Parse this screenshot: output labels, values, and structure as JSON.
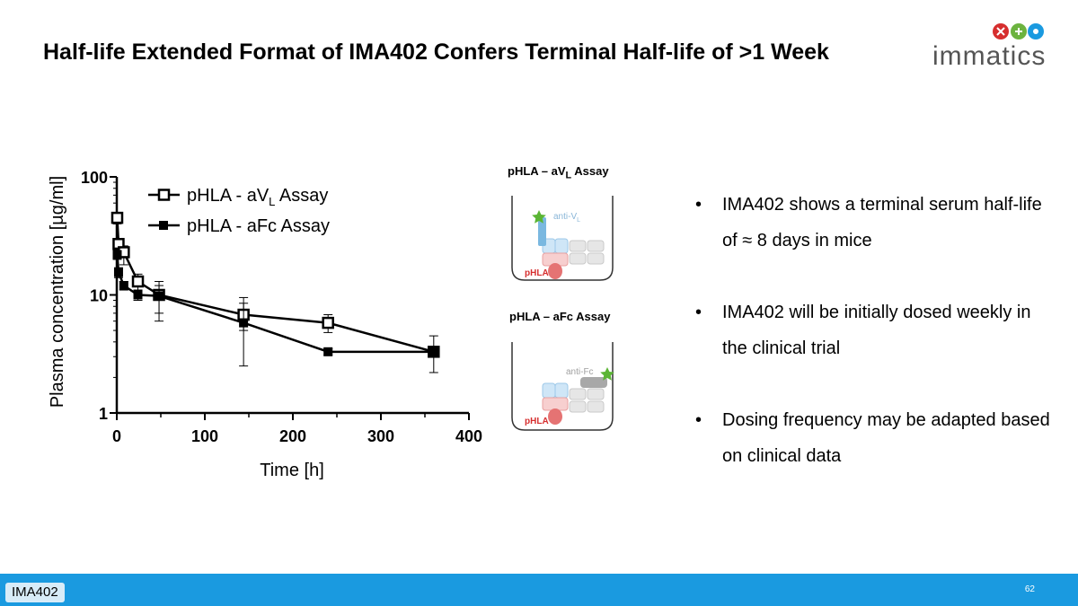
{
  "title": "Half-life Extended Format of IMA402 Confers Terminal Half-life of >1 Week",
  "logo": {
    "word": "immatics",
    "icon": "immatics-logo-icon"
  },
  "chart_data": {
    "type": "scatter",
    "ylabel": "Plasma concentration [µg/ml]",
    "xlabel": "Time [h]",
    "xlim": [
      0,
      400
    ],
    "ylim": [
      1,
      100
    ],
    "yscale": "log",
    "x_ticks": [
      0,
      100,
      200,
      300,
      400
    ],
    "y_ticks": [
      1,
      10,
      100
    ],
    "legend_position": "top-left",
    "series": [
      {
        "name_main": "pHLA - aV",
        "name_sub": "L",
        "name_tail": " Assay",
        "marker": "open-square",
        "points": [
          {
            "x": 0.5,
            "y": 45,
            "lo": 40,
            "hi": 50
          },
          {
            "x": 2,
            "y": 27,
            "lo": 24,
            "hi": 30
          },
          {
            "x": 8,
            "y": 23,
            "lo": 18,
            "hi": 26
          },
          {
            "x": 24,
            "y": 13,
            "lo": 11,
            "hi": 15
          },
          {
            "x": 48,
            "y": 10,
            "lo": 7,
            "hi": 13
          },
          {
            "x": 144,
            "y": 6.8,
            "lo": 5,
            "hi": 9.5
          },
          {
            "x": 240,
            "y": 5.8,
            "lo": 4.8,
            "hi": 6.8
          },
          {
            "x": 360,
            "y": 3.3,
            "lo": 2.2,
            "hi": 4.5
          }
        ]
      },
      {
        "name_main": "pHLA - aFc Assay",
        "name_sub": "",
        "name_tail": "",
        "marker": "filled-square",
        "points": [
          {
            "x": 0.5,
            "y": 22,
            "lo": 20,
            "hi": 25
          },
          {
            "x": 2,
            "y": 15.5,
            "lo": 14,
            "hi": 17
          },
          {
            "x": 8,
            "y": 12,
            "lo": 11,
            "hi": 13
          },
          {
            "x": 24,
            "y": 10,
            "lo": 9,
            "hi": 11
          },
          {
            "x": 48,
            "y": 9.8,
            "lo": 6,
            "hi": 12
          },
          {
            "x": 144,
            "y": 5.8,
            "lo": 2.5,
            "hi": 8.5
          },
          {
            "x": 240,
            "y": 3.3,
            "lo": 3.1,
            "hi": 3.5
          },
          {
            "x": 360,
            "y": 3.3,
            "lo": 3.1,
            "hi": 3.5
          }
        ]
      }
    ]
  },
  "assays": [
    {
      "title_main": "pHLA – aV",
      "title_sub": "L",
      "title_tail": " Assay",
      "label_main": "anti-V",
      "label_sub": "L",
      "pep_label": "pHLA"
    },
    {
      "title_main": "pHLA – aFc Assay",
      "title_sub": "",
      "title_tail": "",
      "label_main": "anti-Fc",
      "label_sub": "",
      "pep_label": "pHLA"
    }
  ],
  "bullets": [
    "IMA402 shows a terminal serum half-life of ≈ 8 days in mice",
    "IMA402 will be initially dosed weekly in the clinical trial",
    "Dosing frequency may be adapted based on clinical data"
  ],
  "footer": {
    "tag": "IMA402",
    "page": "62"
  },
  "colors": {
    "footer": "#1a9ae0",
    "star": "#5bb535",
    "pep": "#e05050",
    "antibody": "#7ab8e0",
    "fc": "#a0a0a0"
  }
}
